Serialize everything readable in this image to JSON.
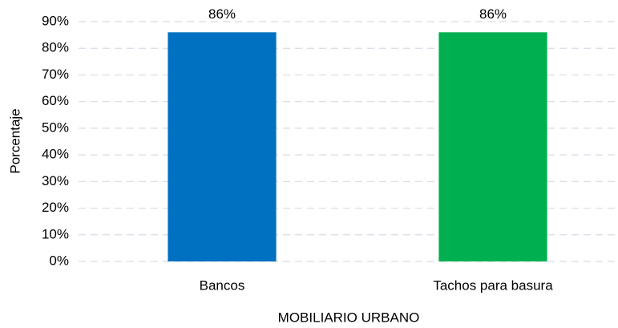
{
  "chart_data": {
    "type": "bar",
    "categories": [
      "Bancos",
      "Tachos para basura"
    ],
    "values": [
      86,
      86
    ],
    "value_labels": [
      "86%",
      "86%"
    ],
    "colors": [
      "#0070c0",
      "#00b050"
    ],
    "xlabel": "MOBILIARIO URBANO",
    "ylabel": "Porcentaje",
    "ylim": [
      0,
      90
    ],
    "yticks": [
      {
        "value": 0,
        "label": "0%"
      },
      {
        "value": 10,
        "label": "10%"
      },
      {
        "value": 20,
        "label": "20%"
      },
      {
        "value": 30,
        "label": "30%"
      },
      {
        "value": 40,
        "label": "40%"
      },
      {
        "value": 50,
        "label": "50%"
      },
      {
        "value": 60,
        "label": "60%"
      },
      {
        "value": 70,
        "label": "70%"
      },
      {
        "value": 80,
        "label": "80%"
      },
      {
        "value": 90,
        "label": "90%"
      }
    ],
    "grid": true
  }
}
